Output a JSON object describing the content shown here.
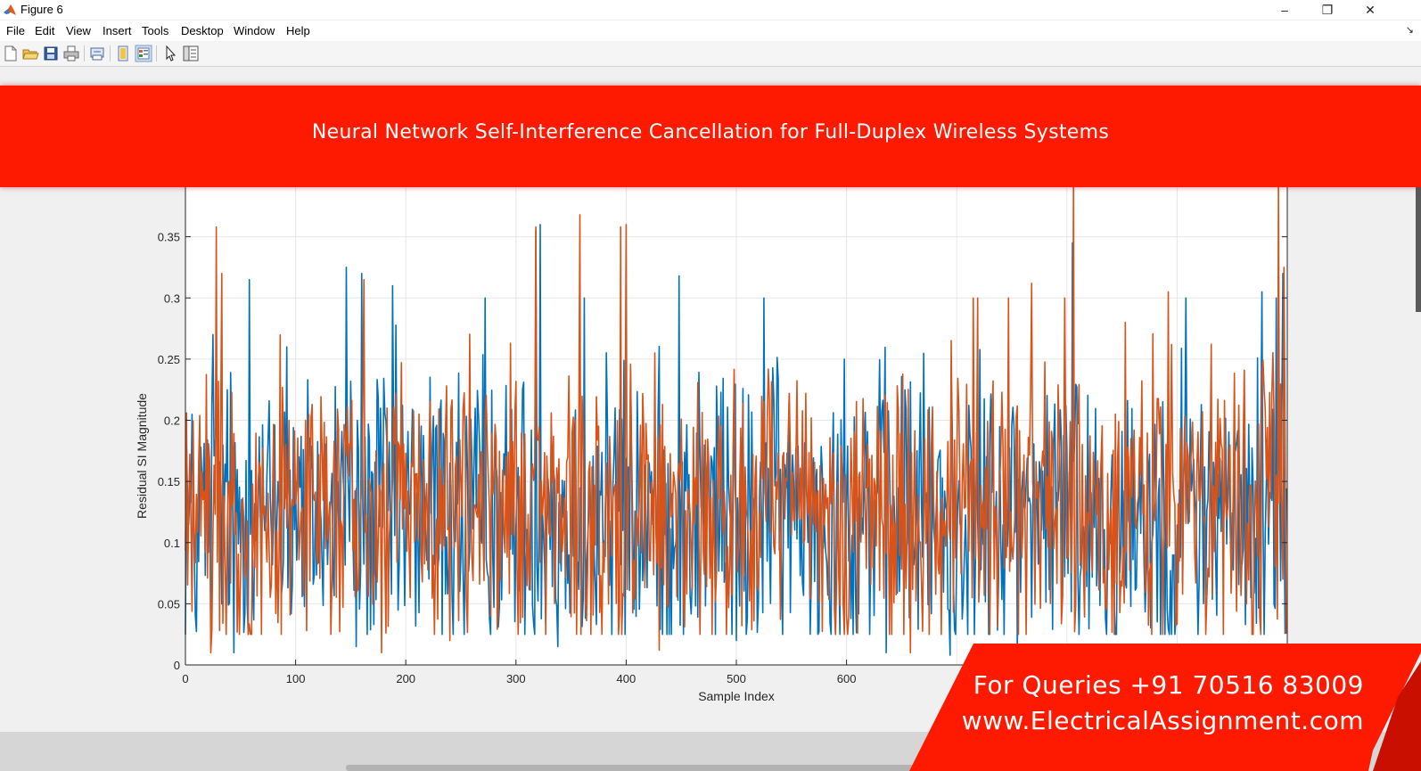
{
  "window": {
    "title": "Figure 6",
    "minimize_icon": "minimize-icon",
    "restore_icon": "restore-icon",
    "close_icon": "close-icon",
    "minimize_glyph": "–",
    "restore_glyph": "❐",
    "close_glyph": "✕"
  },
  "menu": {
    "items": [
      "File",
      "Edit",
      "View",
      "Insert",
      "Tools",
      "Desktop",
      "Window",
      "Help"
    ],
    "corner_glyph": "↘"
  },
  "toolbar": {
    "buttons": [
      "new-figure-icon",
      "open-file-icon",
      "save-icon",
      "print-icon",
      "print-preview-icon",
      "hide-plot-tools-icon",
      "show-plot-tools-icon",
      "edit-plot-pointer-icon",
      "property-inspector-icon"
    ]
  },
  "banner": {
    "title": "Neural Network Self-Interference Cancellation for Full-Duplex Wireless Systems",
    "color": "#fe1a00"
  },
  "contact": {
    "phone": "For Queries +91 70516 83009",
    "website": "www.ElectricalAssignment.com"
  },
  "chart_data": {
    "type": "line",
    "title": "",
    "xlabel": "Sample Index",
    "ylabel": "Residual SI Magnitude",
    "xlim": [
      0,
      1000
    ],
    "ylim": [
      0,
      0.4
    ],
    "xticks": [
      0,
      100,
      200,
      300,
      400,
      500,
      600
    ],
    "xtick_labels": [
      "0",
      "100",
      "200",
      "300",
      "400",
      "500",
      "600"
    ],
    "yticks": [
      0,
      0.05,
      0.1,
      0.15,
      0.2,
      0.25,
      0.3,
      0.35
    ],
    "ytick_labels": [
      "0",
      "0.05",
      "0.1",
      "0.15",
      "0.2",
      "0.25",
      "0.3",
      "0.35"
    ],
    "grid": true,
    "legend": "none",
    "n_samples": 1000,
    "series": [
      {
        "color": "#0072bd",
        "peaks": [
          {
            "x": 25,
            "y": 0.27
          },
          {
            "x": 58,
            "y": 0.315
          },
          {
            "x": 92,
            "y": 0.26
          },
          {
            "x": 146,
            "y": 0.325
          },
          {
            "x": 160,
            "y": 0.32
          },
          {
            "x": 188,
            "y": 0.31
          },
          {
            "x": 272,
            "y": 0.3
          },
          {
            "x": 318,
            "y": 0.355
          },
          {
            "x": 322,
            "y": 0.36
          },
          {
            "x": 362,
            "y": 0.3
          },
          {
            "x": 448,
            "y": 0.318
          },
          {
            "x": 525,
            "y": 0.3
          },
          {
            "x": 598,
            "y": 0.25
          },
          {
            "x": 805,
            "y": 0.345
          },
          {
            "x": 908,
            "y": 0.3
          },
          {
            "x": 977,
            "y": 0.305
          },
          {
            "x": 990,
            "y": 0.3
          },
          {
            "x": 996,
            "y": 0.32
          }
        ],
        "troughs": [
          {
            "x": 44,
            "y": 0.01
          },
          {
            "x": 155,
            "y": 0.015
          },
          {
            "x": 338,
            "y": 0.015
          },
          {
            "x": 500,
            "y": 0.02
          },
          {
            "x": 636,
            "y": 0.01
          },
          {
            "x": 694,
            "y": 0.008
          },
          {
            "x": 755,
            "y": 0.008
          }
        ]
      },
      {
        "color": "#d95319",
        "peaks": [
          {
            "x": 28,
            "y": 0.358
          },
          {
            "x": 33,
            "y": 0.32
          },
          {
            "x": 162,
            "y": 0.315
          },
          {
            "x": 318,
            "y": 0.358
          },
          {
            "x": 358,
            "y": 0.368
          },
          {
            "x": 395,
            "y": 0.358
          },
          {
            "x": 400,
            "y": 0.36
          },
          {
            "x": 715,
            "y": 0.3
          },
          {
            "x": 719,
            "y": 0.3
          },
          {
            "x": 747,
            "y": 0.3
          },
          {
            "x": 768,
            "y": 0.312
          },
          {
            "x": 798,
            "y": 0.3
          },
          {
            "x": 806,
            "y": 0.4
          },
          {
            "x": 892,
            "y": 0.305
          },
          {
            "x": 992,
            "y": 0.395
          },
          {
            "x": 997,
            "y": 0.325
          }
        ],
        "troughs": [
          {
            "x": 23,
            "y": 0.01
          },
          {
            "x": 178,
            "y": 0.01
          },
          {
            "x": 240,
            "y": 0.02
          },
          {
            "x": 430,
            "y": 0.012
          },
          {
            "x": 658,
            "y": 0.01
          }
        ]
      }
    ]
  }
}
